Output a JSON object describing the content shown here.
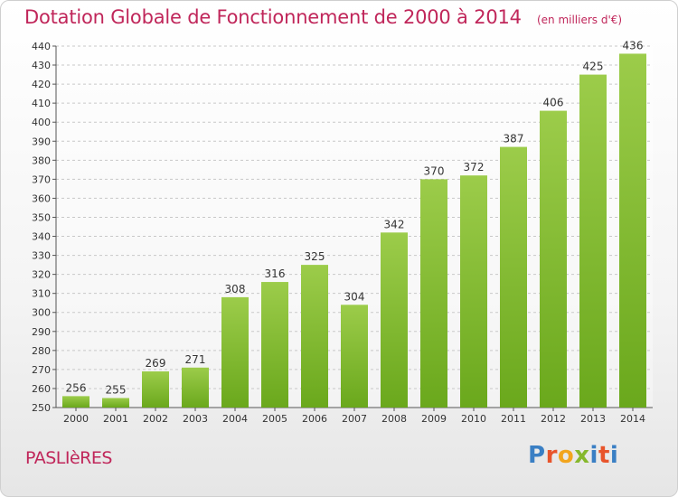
{
  "header": {
    "title": "Dotation Globale de Fonctionnement de 2000 à 2014",
    "unit": "(en milliers d'€)"
  },
  "footer": {
    "commune": "PASLIèRES",
    "logo_letters": [
      "P",
      "r",
      "o",
      "x",
      "i",
      "t",
      "i"
    ],
    "logo_colors": [
      "#3a7fc4",
      "#e8542b",
      "#f2a51e",
      "#86b82c",
      "#3a7fc4",
      "#e8542b",
      "#3a7fc4"
    ]
  },
  "chart_data": {
    "type": "bar",
    "title": "Dotation Globale de Fonctionnement de 2000 à 2014",
    "categories": [
      "2000",
      "2001",
      "2002",
      "2003",
      "2004",
      "2005",
      "2006",
      "2007",
      "2008",
      "2009",
      "2010",
      "2011",
      "2012",
      "2013",
      "2014"
    ],
    "values": [
      256,
      255,
      269,
      271,
      308,
      316,
      325,
      304,
      342,
      370,
      372,
      387,
      406,
      425,
      436
    ],
    "ylim": [
      250,
      440
    ],
    "ytick_step": 10,
    "grid": true,
    "bar_color_top": "#9ccc4a",
    "bar_color_bottom": "#6aa81c"
  }
}
